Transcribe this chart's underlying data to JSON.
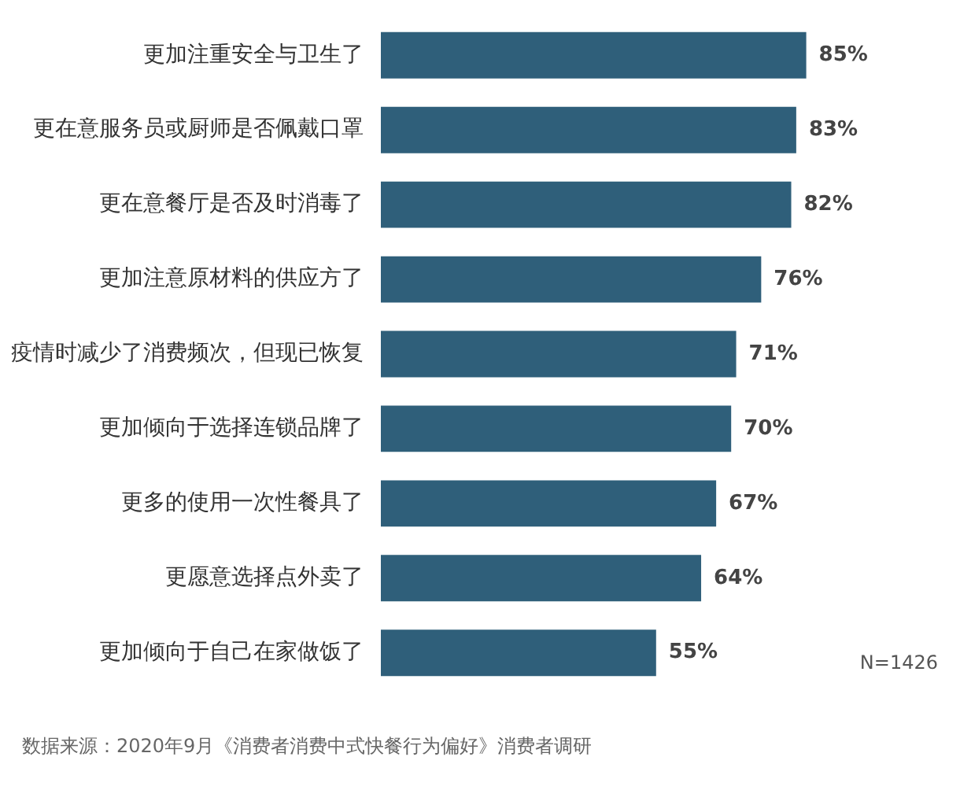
{
  "chart_data": {
    "type": "bar",
    "orientation": "horizontal",
    "categories": [
      "更加注重安全与卫生了",
      "更在意服务员或厨师是否佩戴口罩",
      "更在意餐厅是否及时消毒了",
      "更加注意原材料的供应方了",
      "疫情时减少了消费频次，但现已恢复",
      "更加倾向于选择连锁品牌了",
      "更多的使用一次性餐具了",
      "更愿意选择点外卖了",
      "更加倾向于自己在家做饭了"
    ],
    "values": [
      85,
      83,
      82,
      76,
      71,
      70,
      67,
      64,
      55
    ],
    "value_labels": [
      "85%",
      "83%",
      "82%",
      "76%",
      "71%",
      "70%",
      "67%",
      "64%",
      "55%"
    ],
    "color": "#2f5f7a",
    "annotations": [
      "N=1426",
      "数据来源：2020年9月《消费者消费中式快餐行为偏好》消费者调研"
    ]
  }
}
